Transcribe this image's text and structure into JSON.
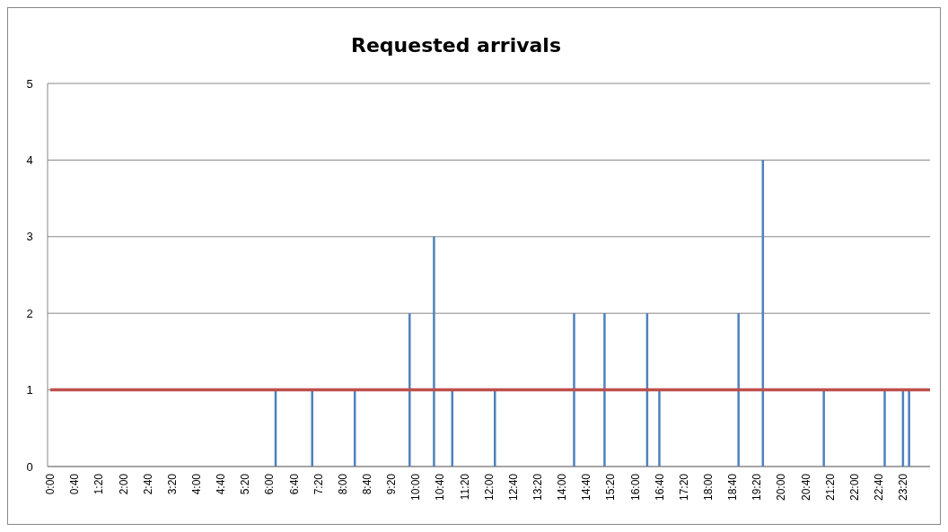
{
  "chart_data": {
    "type": "bar",
    "title": "Requested arrivals",
    "x": [
      6.1667,
      7.1667,
      8.3333,
      9.8333,
      10.5,
      11,
      12.1667,
      14.3333,
      15.1667,
      16.3333,
      16.6667,
      18.8333,
      19.5,
      21.1667,
      22.8333,
      23.3333,
      23.5
    ],
    "values": [
      1,
      1,
      1,
      2,
      3,
      1,
      1,
      2,
      2,
      2,
      1,
      2,
      4,
      1,
      1,
      1,
      1
    ],
    "color": "#4f81bd",
    "xlim": [
      0,
      24
    ],
    "xticks": [
      {
        "value": 0,
        "label": "0:00"
      },
      {
        "value": 0.6667,
        "label": "0:40"
      },
      {
        "value": 1.3333,
        "label": "1:20"
      },
      {
        "value": 2,
        "label": "2:00"
      },
      {
        "value": 2.6667,
        "label": "2:40"
      },
      {
        "value": 3.3333,
        "label": "3:20"
      },
      {
        "value": 4,
        "label": "4:00"
      },
      {
        "value": 4.6667,
        "label": "4:40"
      },
      {
        "value": 5.3333,
        "label": "5:20"
      },
      {
        "value": 6,
        "label": "6:00"
      },
      {
        "value": 6.6667,
        "label": "6:40"
      },
      {
        "value": 7.3333,
        "label": "7:20"
      },
      {
        "value": 8,
        "label": "8:00"
      },
      {
        "value": 8.6667,
        "label": "8:40"
      },
      {
        "value": 9.3333,
        "label": "9:20"
      },
      {
        "value": 10,
        "label": "10:00"
      },
      {
        "value": 10.6667,
        "label": "10:40"
      },
      {
        "value": 11.3333,
        "label": "11:20"
      },
      {
        "value": 12,
        "label": "12:00"
      },
      {
        "value": 12.6667,
        "label": "12:40"
      },
      {
        "value": 13.3333,
        "label": "13:20"
      },
      {
        "value": 14,
        "label": "14:00"
      },
      {
        "value": 14.6667,
        "label": "14:40"
      },
      {
        "value": 15.3333,
        "label": "15:20"
      },
      {
        "value": 16,
        "label": "16:00"
      },
      {
        "value": 16.6667,
        "label": "16:40"
      },
      {
        "value": 17.3333,
        "label": "17:20"
      },
      {
        "value": 18,
        "label": "18:00"
      },
      {
        "value": 18.6667,
        "label": "18:40"
      },
      {
        "value": 19.3333,
        "label": "19:20"
      },
      {
        "value": 20,
        "label": "20:00"
      },
      {
        "value": 20.6667,
        "label": "20:40"
      },
      {
        "value": 21.3333,
        "label": "21:20"
      },
      {
        "value": 22,
        "label": "22:00"
      },
      {
        "value": 22.6667,
        "label": "22:40"
      },
      {
        "value": 23.3333,
        "label": "23:20"
      }
    ],
    "ylim": [
      0,
      5
    ],
    "yticks": [
      0,
      1,
      2,
      3,
      4,
      5
    ],
    "grid": "y",
    "ref_lines": [
      {
        "axis": "y",
        "value": 1,
        "color": "#c0504d"
      }
    ]
  }
}
